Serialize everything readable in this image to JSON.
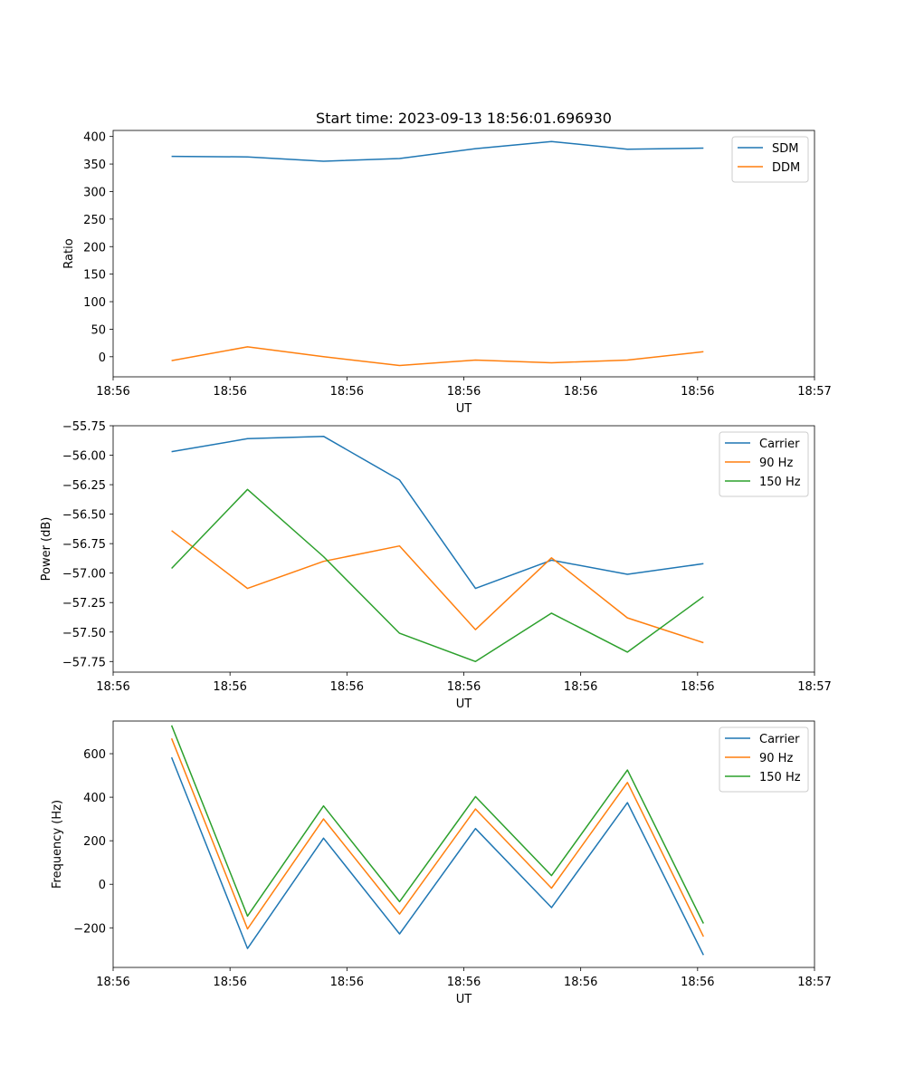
{
  "figure": {
    "title": "Start time: 2023-09-13 18:56:01.696930"
  },
  "chart_data": [
    {
      "type": "line",
      "title": "Start time: 2023-09-13 18:56:01.696930",
      "xlabel": "UT",
      "ylabel": "Ratio",
      "x": [
        0.5,
        1.15,
        1.8,
        2.45,
        3.1,
        3.75,
        4.4,
        5.05
      ],
      "xlim": [
        0,
        6
      ],
      "xticks": [
        0,
        1,
        2,
        3,
        4,
        5,
        6
      ],
      "xtick_labels": [
        "18:56",
        "18:56",
        "18:56",
        "18:56",
        "18:56",
        "18:56",
        "18:57"
      ],
      "ylim": [
        -36.5,
        411
      ],
      "yticks": [
        0,
        50,
        100,
        150,
        200,
        250,
        300,
        350,
        400
      ],
      "ytick_labels": [
        "0",
        "50",
        "100",
        "150",
        "200",
        "250",
        "300",
        "350",
        "400"
      ],
      "legend": "top-right",
      "series": [
        {
          "name": "SDM",
          "color": "#1f77b4",
          "values": [
            364,
            363,
            355,
            360,
            378,
            391,
            377,
            379
          ]
        },
        {
          "name": "DDM",
          "color": "#ff7f0e",
          "values": [
            -7,
            18,
            0,
            -16,
            -6,
            -11,
            -6,
            9
          ]
        }
      ]
    },
    {
      "type": "line",
      "xlabel": "UT",
      "ylabel": "Power (dB)",
      "x": [
        0.5,
        1.15,
        1.8,
        2.45,
        3.1,
        3.75,
        4.4,
        5.05
      ],
      "xlim": [
        0,
        6
      ],
      "xticks": [
        0,
        1,
        2,
        3,
        4,
        5,
        6
      ],
      "xtick_labels": [
        "18:56",
        "18:56",
        "18:56",
        "18:56",
        "18:56",
        "18:56",
        "18:57"
      ],
      "ylim": [
        -57.84,
        -55.75
      ],
      "yticks": [
        -55.75,
        -56.0,
        -56.25,
        -56.5,
        -56.75,
        -57.0,
        -57.25,
        -57.5,
        -57.75
      ],
      "ytick_labels": [
        "−55.75",
        "−56.00",
        "−56.25",
        "−56.50",
        "−56.75",
        "−57.00",
        "−57.25",
        "−57.50",
        "−57.75"
      ],
      "legend": "top-right",
      "series": [
        {
          "name": "Carrier",
          "color": "#1f77b4",
          "values": [
            -55.97,
            -55.86,
            -55.84,
            -56.21,
            -57.13,
            -56.89,
            -57.01,
            -56.92
          ]
        },
        {
          "name": "90 Hz",
          "color": "#ff7f0e",
          "values": [
            -56.64,
            -57.13,
            -56.9,
            -56.77,
            -57.48,
            -56.87,
            -57.38,
            -57.59
          ]
        },
        {
          "name": "150 Hz",
          "color": "#2ca02c",
          "values": [
            -56.96,
            -56.29,
            -56.86,
            -57.51,
            -57.75,
            -57.34,
            -57.67,
            -57.2
          ]
        }
      ]
    },
    {
      "type": "line",
      "xlabel": "UT",
      "ylabel": "Frequency (Hz)",
      "x": [
        0.5,
        1.15,
        1.8,
        2.45,
        3.1,
        3.75,
        4.4,
        5.05
      ],
      "xlim": [
        0,
        6
      ],
      "xticks": [
        0,
        1,
        2,
        3,
        4,
        5,
        6
      ],
      "xtick_labels": [
        "18:56",
        "18:56",
        "18:56",
        "18:56",
        "18:56",
        "18:56",
        "18:57"
      ],
      "ylim": [
        -382,
        750
      ],
      "yticks": [
        -200,
        0,
        200,
        400,
        600
      ],
      "ytick_labels": [
        "−200",
        "0",
        "200",
        "400",
        "600"
      ],
      "legend": "top-right",
      "series": [
        {
          "name": "Carrier",
          "color": "#1f77b4",
          "values": [
            583,
            -295,
            212,
            -228,
            256,
            -107,
            375,
            -325
          ]
        },
        {
          "name": "90 Hz",
          "color": "#ff7f0e",
          "values": [
            670,
            -205,
            300,
            -137,
            346,
            -18,
            468,
            -240
          ]
        },
        {
          "name": "150 Hz",
          "color": "#2ca02c",
          "values": [
            730,
            -146,
            360,
            -80,
            403,
            40,
            525,
            -180
          ]
        }
      ]
    }
  ]
}
